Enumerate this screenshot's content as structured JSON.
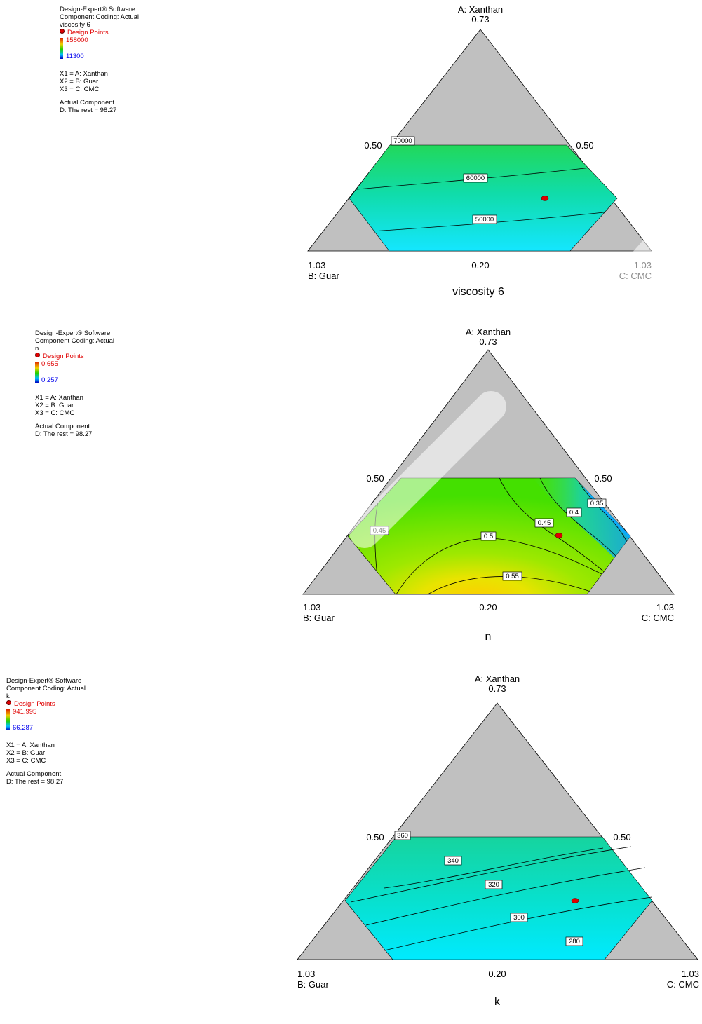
{
  "panels": [
    {
      "legend": {
        "software": "Design-Expert® Software",
        "coding": "Component Coding: Actual",
        "response": "viscosity 6",
        "design_points": "Design Points",
        "high": "158000",
        "low": "11300",
        "x1": "X1 = A: Xanthan",
        "x2": "X2 = B: Guar",
        "x3": "X3 = C: CMC",
        "actual_component": "Actual Component",
        "rest": "D: The rest = 98.27"
      }
    },
    {
      "legend": {
        "software": "Design-Expert® Software",
        "coding": "Component Coding: Actual",
        "response": "n",
        "design_points": "Design Points",
        "high": "0.655",
        "low": "0.257",
        "x1": "X1 = A: Xanthan",
        "x2": "X2 = B: Guar",
        "x3": "X3 = C: CMC",
        "actual_component": "Actual Component",
        "rest": "D: The rest = 98.27"
      }
    },
    {
      "legend": {
        "software": "Design-Expert® Software",
        "coding": "Component Coding: Actual",
        "response": "k",
        "design_points": "Design Points",
        "high": "941.995",
        "low": "66.287",
        "x1": "X1 = A: Xanthan",
        "x2": "X2 = B: Guar",
        "x3": "X3 = C: CMC",
        "actual_component": "Actual Component",
        "rest": "D: The rest = 98.27"
      }
    }
  ],
  "chart_data": [
    {
      "type": "ternary-contour",
      "title": "viscosity 6",
      "apex": {
        "name": "A: Xanthan",
        "value": "0.73"
      },
      "left": {
        "name": "B: Guar",
        "value": "1.03"
      },
      "right": {
        "name": "C: CMC",
        "value": "1.03"
      },
      "bottom_mid": "0.20",
      "side_left": "0.50",
      "side_right": "0.50",
      "contour_labels": [
        "70000",
        "60000",
        "50000"
      ],
      "design_points": 1,
      "colors": {
        "top": "#22d858",
        "bottom": "#14e4ff",
        "constraint": "#c0c0c0"
      }
    },
    {
      "type": "ternary-contour",
      "title": "n",
      "apex": {
        "name": "A: Xanthan",
        "value": "0.73"
      },
      "left": {
        "name": "B: Guar",
        "value": "1.03"
      },
      "right": {
        "name": "C: CMC",
        "value": "1.03"
      },
      "bottom_mid": "0.20",
      "side_left": "0.50",
      "side_right": "0.50",
      "contour_labels": [
        "0.45",
        "0.5",
        "0.55",
        "0.45",
        "0.4",
        "0.35"
      ],
      "design_points": 1,
      "colors": {
        "main": "#52e400",
        "low": "#0aa8ff",
        "high": "#ffd200",
        "constraint": "#c0c0c0"
      }
    },
    {
      "type": "ternary-contour",
      "title": "k",
      "apex": {
        "name": "A: Xanthan",
        "value": "0.73"
      },
      "left": {
        "name": "B: Guar",
        "value": "1.03"
      },
      "right": {
        "name": "C: CMC",
        "value": "1.03"
      },
      "bottom_mid": "0.20",
      "side_left": "0.50",
      "side_right": "0.50",
      "contour_labels": [
        "360",
        "340",
        "320",
        "300",
        "280"
      ],
      "design_points": 1,
      "colors": {
        "top": "#18d89a",
        "bottom": "#00eaff",
        "constraint": "#c0c0c0"
      }
    }
  ]
}
